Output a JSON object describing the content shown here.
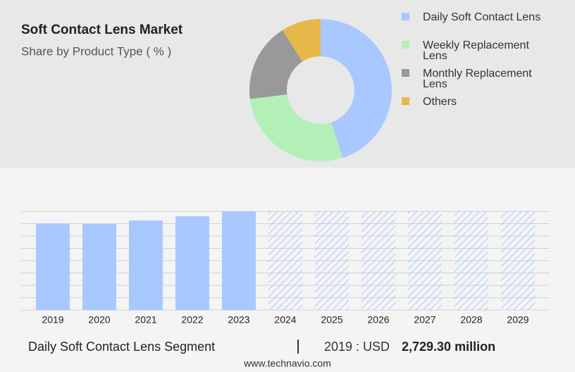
{
  "chart_data": [
    {
      "type": "pie",
      "title": "Soft Contact Lens Market",
      "subtitle": "Share by Product Type ( % )",
      "categories": [
        "Daily Soft Contact Lens",
        "Weekly Replacement Lens",
        "Monthly Replacement Lens",
        "Others"
      ],
      "values": [
        45,
        28,
        18,
        9
      ],
      "colors": [
        "#a8c8ff",
        "#b3f0b8",
        "#999999",
        "#e6b84a"
      ],
      "legend": "right"
    },
    {
      "type": "bar",
      "categories": [
        "2019",
        "2020",
        "2021",
        "2022",
        "2023",
        "2024",
        "2025",
        "2026",
        "2027",
        "2028",
        "2029"
      ],
      "values": [
        2729.3,
        2707,
        2818,
        2951,
        3107,
        null,
        null,
        null,
        null,
        null,
        null
      ],
      "color": "#a8c8ff",
      "ylim": [
        0,
        3107
      ],
      "grid": true
    }
  ],
  "footer": {
    "segment": "Daily Soft Contact Lens Segment",
    "year_currency": "2019 : USD",
    "value": "2,729.30 million"
  },
  "website": "www.technavio.com"
}
